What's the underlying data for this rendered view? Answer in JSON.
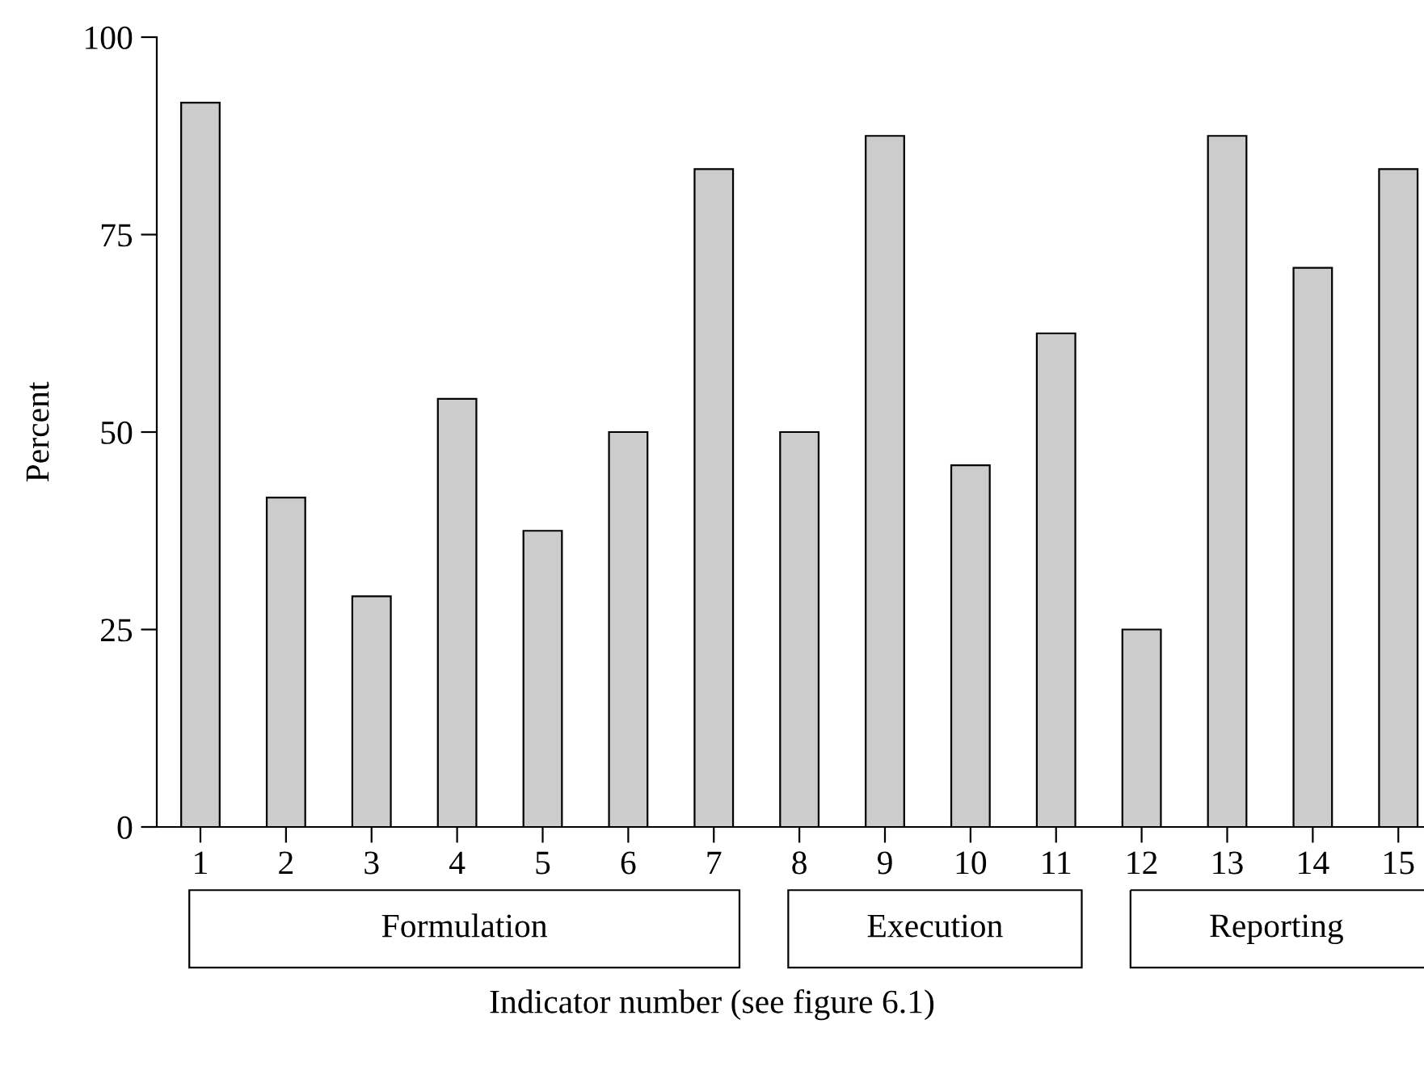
{
  "chart_data": {
    "type": "bar",
    "xlabel": "Indicator number (see figure 6.1)",
    "ylabel": "Percent",
    "categories": [
      "1",
      "2",
      "3",
      "4",
      "5",
      "6",
      "7",
      "8",
      "9",
      "10",
      "11",
      "12",
      "13",
      "14",
      "15"
    ],
    "values": [
      91.7,
      41.7,
      29.2,
      54.2,
      37.5,
      50,
      83.3,
      50,
      87.5,
      45.8,
      62.5,
      25,
      87.5,
      70.8,
      83.3
    ],
    "color": "#cccccc",
    "ylim": [
      0,
      100
    ],
    "yticks": [
      0,
      25,
      50,
      75,
      100
    ],
    "grid": false,
    "legend": false,
    "annotations": [
      "Formulation",
      "Execution",
      "Reporting"
    ]
  }
}
